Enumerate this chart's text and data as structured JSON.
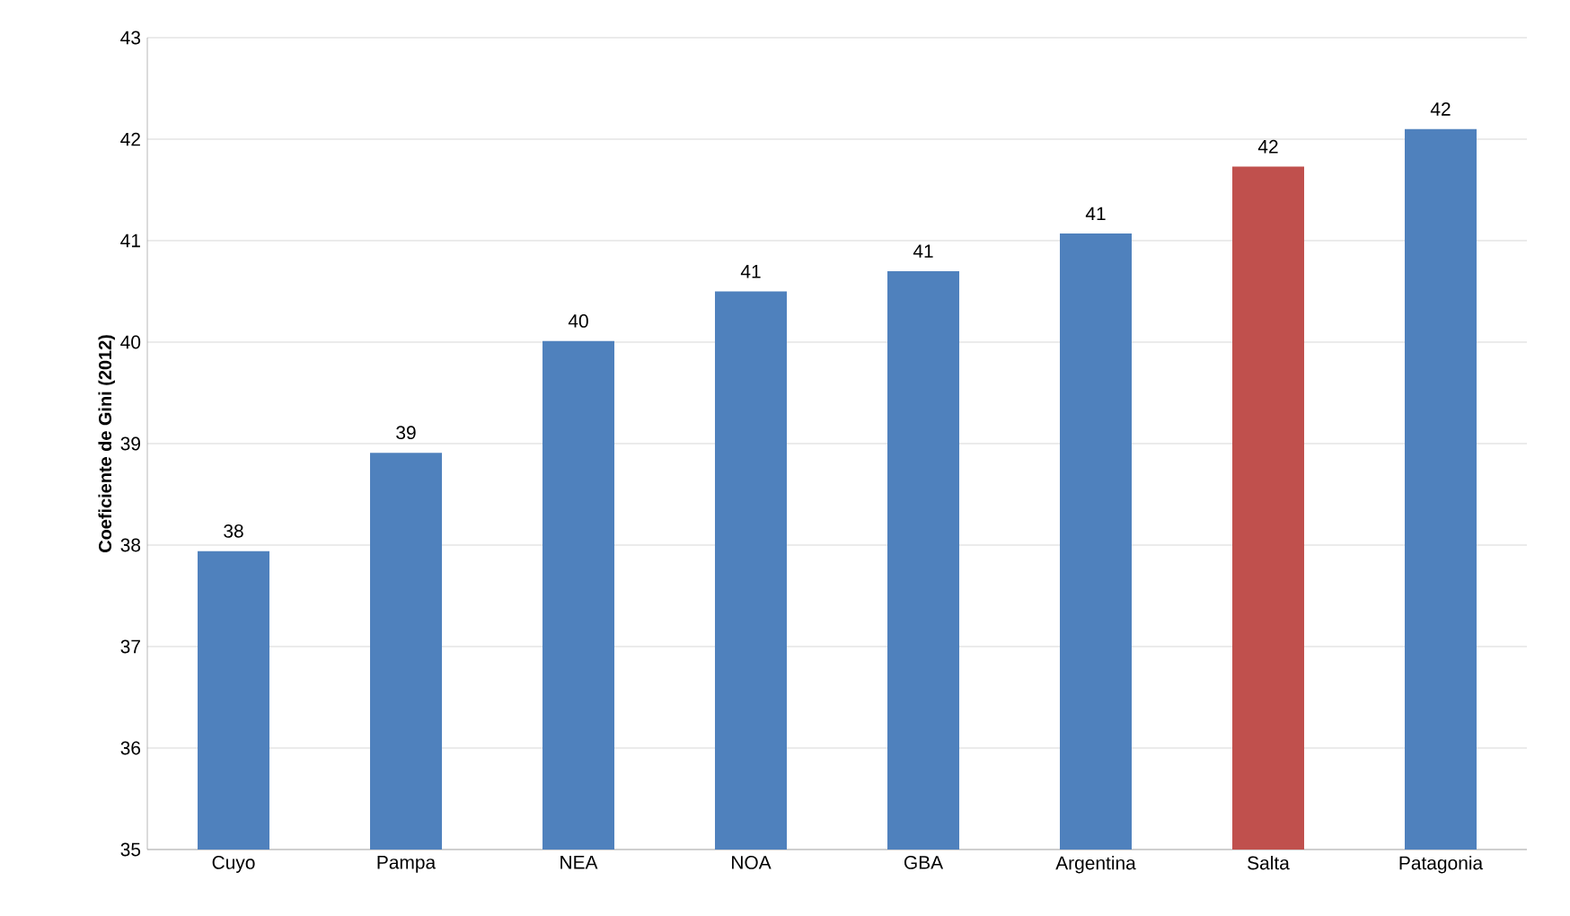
{
  "chart_data": {
    "type": "bar",
    "ylabel": "Coeficiente de Gini  (2012)",
    "categories": [
      "Cuyo",
      "Pampa",
      "NEA",
      "NOA",
      "GBA",
      "Argentina",
      "Salta",
      "Patagonia"
    ],
    "values": [
      37.94,
      38.91,
      40.01,
      40.5,
      40.7,
      41.07,
      41.73,
      42.1
    ],
    "value_labels": [
      "38",
      "39",
      "40",
      "41",
      "41",
      "41",
      "42",
      "42"
    ],
    "colors": [
      "#4f81bd",
      "#4f81bd",
      "#4f81bd",
      "#4f81bd",
      "#4f81bd",
      "#4f81bd",
      "#c0504d",
      "#4f81bd"
    ],
    "ylim": [
      35,
      43
    ],
    "yticks": [
      35,
      36,
      37,
      38,
      39,
      40,
      41,
      42,
      43
    ],
    "grid": "y"
  }
}
